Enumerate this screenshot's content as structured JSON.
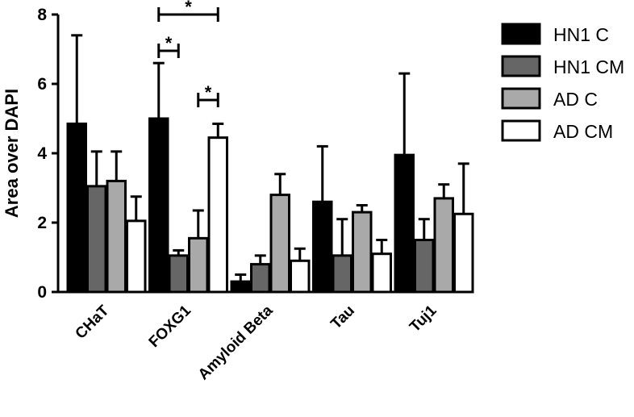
{
  "chart_data": {
    "type": "bar",
    "title": "",
    "xlabel": "",
    "ylabel": "Area over DAPI",
    "ylim": [
      0,
      8
    ],
    "yticks": [
      0,
      2,
      4,
      6,
      8
    ],
    "categories": [
      "CHaT",
      "FOXG1",
      "Amyloid Beta",
      "Tau",
      "Tuj1"
    ],
    "series": [
      {
        "name": "HN1 C",
        "color": "#000000",
        "values": [
          4.85,
          5.0,
          0.3,
          2.6,
          3.95
        ],
        "errors": [
          2.55,
          1.6,
          0.2,
          1.6,
          2.35
        ]
      },
      {
        "name": "HN1 CM",
        "color": "#666666",
        "values": [
          3.05,
          1.05,
          0.8,
          1.05,
          1.5
        ],
        "errors": [
          1.0,
          0.15,
          0.25,
          1.05,
          0.6
        ]
      },
      {
        "name": "AD C",
        "color": "#a9a9a9",
        "values": [
          3.2,
          1.55,
          2.8,
          2.3,
          2.7
        ],
        "errors": [
          0.85,
          0.8,
          0.6,
          0.2,
          0.4
        ]
      },
      {
        "name": "AD CM",
        "color": "#ffffff",
        "values": [
          2.05,
          4.45,
          0.9,
          1.1,
          2.25
        ],
        "errors": [
          0.7,
          0.4,
          0.35,
          0.4,
          1.45
        ]
      }
    ],
    "significance": [
      {
        "category": "FOXG1",
        "from_series": 0,
        "to_series": 3,
        "label": "*"
      },
      {
        "category": "FOXG1",
        "from_series": 0,
        "to_series": 1,
        "label": "*"
      },
      {
        "category": "FOXG1",
        "from_series": 2,
        "to_series": 3,
        "label": "*"
      }
    ],
    "legend": {
      "position": "right"
    },
    "grid": false
  }
}
